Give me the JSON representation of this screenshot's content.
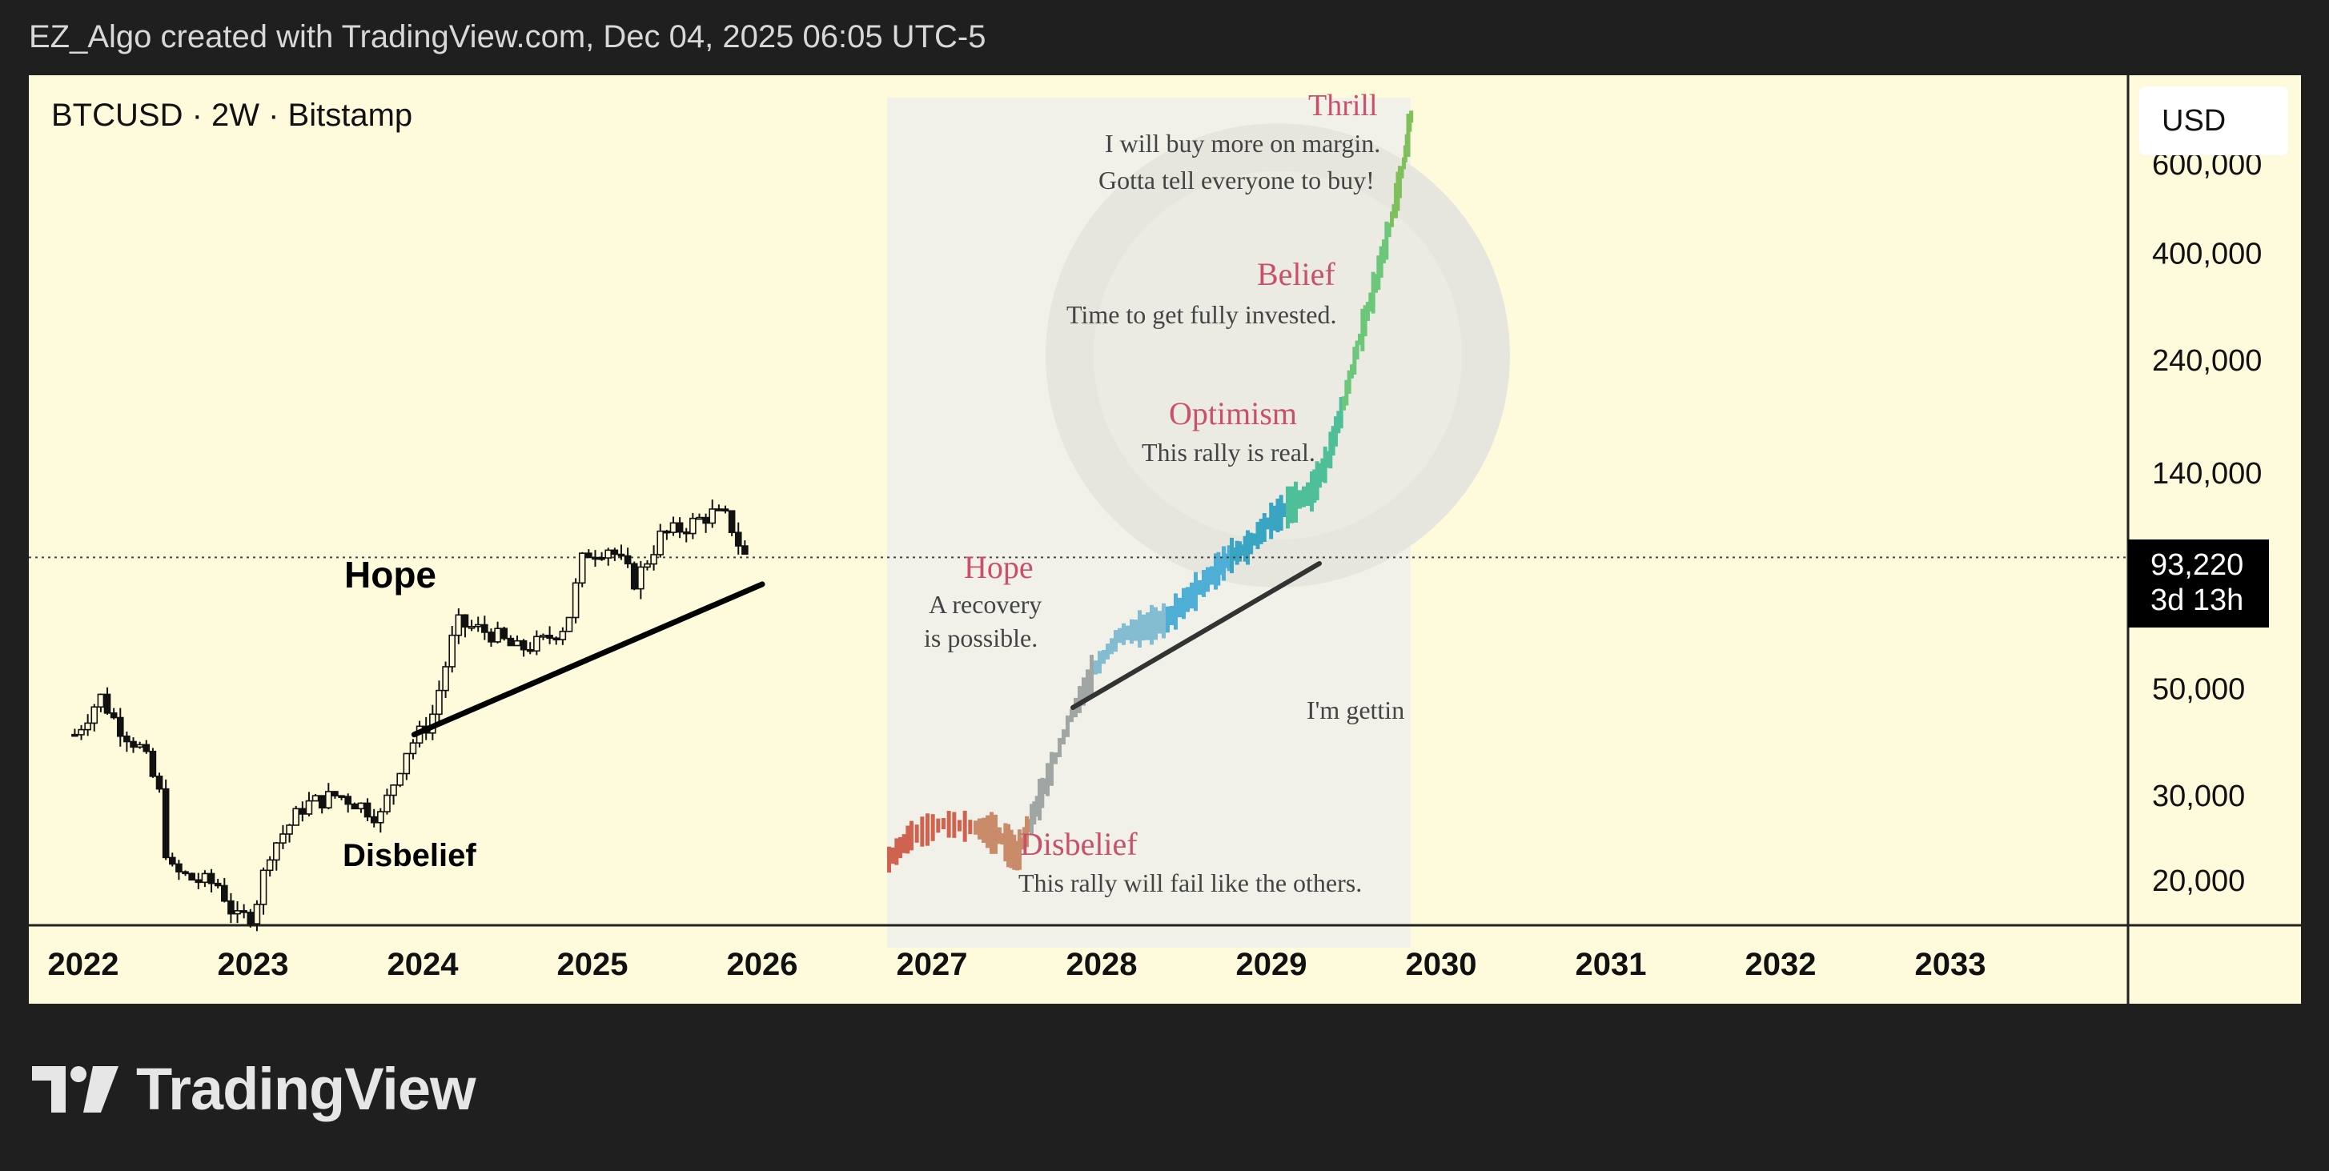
{
  "header": {
    "credit": "EZ_Algo created with TradingView.com, Dec 04, 2025 06:05 UTC-5"
  },
  "chart": {
    "symbol": "BTCUSD · 2W · Bitstamp",
    "currency": "USD",
    "last_price_label": "93,220",
    "countdown_label": "3d 13h",
    "annotations": {
      "hope": "Hope",
      "disbelief": "Disbelief"
    },
    "inset": {
      "thrill_title": "Thrill",
      "thrill_line1": "I will buy more on margin.",
      "thrill_line2": "Gotta tell everyone to buy!",
      "belief_title": "Belief",
      "belief_text": "Time to get fully invested.",
      "optimism_title": "Optimism",
      "optimism_text": "This rally is real.",
      "hope_title": "Hope",
      "hope_line1": "A recovery",
      "hope_line2": "is possible.",
      "getting_text": "I'm gettin",
      "disbelief_title": "Disbelief",
      "disbelief_text": "This rally will fail like the others."
    }
  },
  "footer": {
    "brand": "TradingView"
  },
  "colors": {
    "page_bg": "#1f1f1f",
    "chart_bg": "#fefbdc",
    "candle": "#111111",
    "label_red": "#c9506a",
    "price_tag_bg": "#000000"
  },
  "chart_data": {
    "type": "candlestick",
    "symbol": "BTCUSD",
    "interval": "2W",
    "exchange": "Bitstamp",
    "y_scale": "log",
    "y_ticks": [
      {
        "value": 600000,
        "label": "600,000"
      },
      {
        "value": 400000,
        "label": "400,000"
      },
      {
        "value": 240000,
        "label": "240,000"
      },
      {
        "value": 140000,
        "label": "140,000"
      },
      {
        "value": 50000,
        "label": "50,000"
      },
      {
        "value": 30000,
        "label": "30,000"
      },
      {
        "value": 20000,
        "label": "20,000"
      }
    ],
    "x_ticks": [
      {
        "value": 2022,
        "label": "2022"
      },
      {
        "value": 2023,
        "label": "2023"
      },
      {
        "value": 2024,
        "label": "2024"
      },
      {
        "value": 2025,
        "label": "2025"
      },
      {
        "value": 2026,
        "label": "2026"
      },
      {
        "value": 2027,
        "label": "2027"
      },
      {
        "value": 2028,
        "label": "2028"
      },
      {
        "value": 2029,
        "label": "2029"
      },
      {
        "value": 2030,
        "label": "2030"
      },
      {
        "value": 2031,
        "label": "2031"
      },
      {
        "value": 2032,
        "label": "2032"
      },
      {
        "value": 2033,
        "label": "2033"
      }
    ],
    "last_price": 93220,
    "price_path": [
      [
        2021.95,
        40000
      ],
      [
        2022.1,
        48000
      ],
      [
        2022.2,
        42000
      ],
      [
        2022.35,
        37000
      ],
      [
        2022.45,
        30000
      ],
      [
        2022.5,
        21000
      ],
      [
        2022.65,
        20000
      ],
      [
        2022.8,
        19500
      ],
      [
        2022.9,
        16500
      ],
      [
        2023.0,
        17000
      ],
      [
        2023.1,
        23000
      ],
      [
        2023.3,
        28500
      ],
      [
        2023.5,
        30000
      ],
      [
        2023.6,
        29000
      ],
      [
        2023.75,
        27000
      ],
      [
        2023.9,
        37000
      ],
      [
        2024.05,
        43000
      ],
      [
        2024.2,
        68000
      ],
      [
        2024.4,
        65000
      ],
      [
        2024.55,
        60000
      ],
      [
        2024.7,
        62000
      ],
      [
        2024.85,
        68000
      ],
      [
        2024.95,
        95000
      ],
      [
        2025.1,
        98000
      ],
      [
        2025.25,
        83000
      ],
      [
        2025.4,
        103000
      ],
      [
        2025.55,
        108000
      ],
      [
        2025.7,
        115000
      ],
      [
        2025.8,
        112000
      ],
      [
        2025.88,
        96000
      ],
      [
        2025.92,
        91000
      ]
    ],
    "trendline": {
      "start": [
        2023.95,
        40000
      ],
      "end": [
        2026.0,
        82000
      ]
    },
    "annotations": [
      {
        "text": "Hope",
        "x": 2023.8,
        "y": 89000
      },
      {
        "text": "Disbelief",
        "x": 2023.8,
        "y": 21000
      }
    ]
  }
}
